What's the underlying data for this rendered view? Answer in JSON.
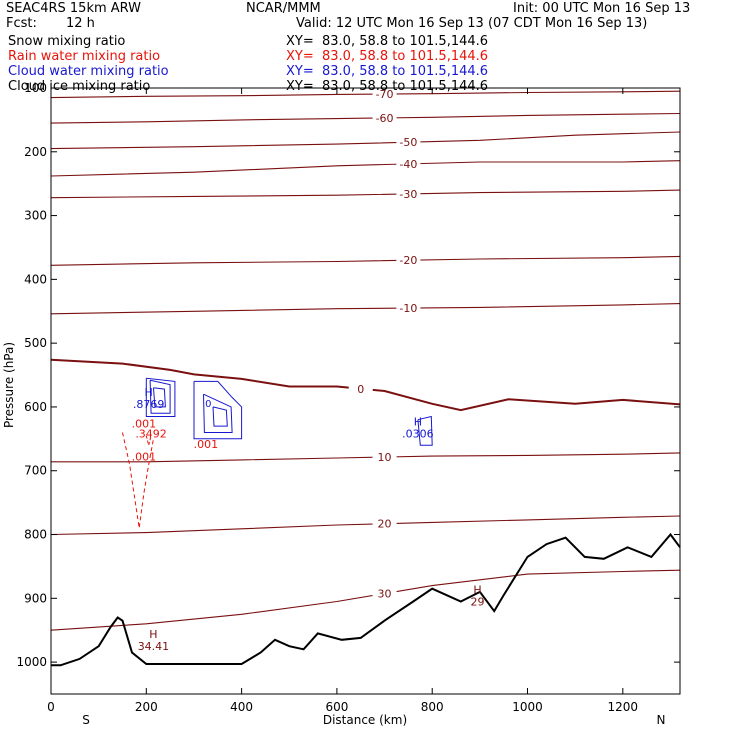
{
  "header": {
    "model": "SEAC4RS 15km ARW",
    "org": "NCAR/MMM",
    "init": "Init: 00 UTC Mon 16 Sep 13",
    "fcst_label": "Fcst:",
    "fcst_value": "12 h",
    "valid": "Valid: 12 UTC Mon 16 Sep 13 (07 CDT Mon 16 Sep 13)"
  },
  "fields": [
    {
      "name": "Snow mixing ratio",
      "xy": "XY=  83.0, 58.8 to 101.5,144.6",
      "color": "#000000"
    },
    {
      "name": "Rain water mixing ratio",
      "xy": "XY=  83.0, 58.8 to 101.5,144.6",
      "color": "#e8140a"
    },
    {
      "name": "Cloud water mixing ratio",
      "xy": "XY=  83.0, 58.8 to 101.5,144.6",
      "color": "#1818d0"
    },
    {
      "name": "Cloud ice mixing ratio",
      "xy": "XY=  83.0, 58.8 to 101.5,144.6",
      "color": "#000000"
    }
  ],
  "colors": {
    "temperature": "#7a1010",
    "rain": "#e8140a",
    "cloud": "#1818d0",
    "terrain": "#000000"
  },
  "chart_data": {
    "type": "cross-section contour",
    "xlabel": "Distance (km)",
    "ylabel": "Pressure (hPa)",
    "xlim": [
      0,
      1320
    ],
    "ylim": [
      1050,
      100
    ],
    "y_log_scale": false,
    "x_ticks": [
      0,
      200,
      400,
      600,
      800,
      1000,
      1200
    ],
    "y_ticks": [
      200,
      300,
      400,
      500,
      600,
      700,
      800,
      900,
      1000
    ],
    "y_tick_top_label": "100",
    "x_end_labels": {
      "left": "S",
      "right": "N"
    },
    "temperature_contours": [
      {
        "label": "-70",
        "values": [
          [
            0,
            115
          ],
          [
            200,
            113
          ],
          [
            400,
            112
          ],
          [
            600,
            110
          ],
          [
            800,
            109
          ],
          [
            1000,
            107
          ],
          [
            1200,
            106
          ],
          [
            1320,
            105
          ]
        ]
      },
      {
        "label": "-60",
        "values": [
          [
            0,
            155
          ],
          [
            200,
            153
          ],
          [
            400,
            150
          ],
          [
            600,
            148
          ],
          [
            800,
            146
          ],
          [
            1000,
            143
          ],
          [
            1200,
            141
          ],
          [
            1320,
            140
          ]
        ]
      },
      {
        "label": "-50",
        "values": [
          [
            0,
            195
          ],
          [
            300,
            192
          ],
          [
            600,
            188
          ],
          [
            900,
            182
          ],
          [
            1100,
            174
          ],
          [
            1320,
            169
          ]
        ]
      },
      {
        "label": "-40",
        "values": [
          [
            0,
            238
          ],
          [
            300,
            232
          ],
          [
            600,
            222
          ],
          [
            900,
            216
          ],
          [
            1200,
            216
          ],
          [
            1320,
            214
          ]
        ]
      },
      {
        "label": "-30",
        "values": [
          [
            0,
            272
          ],
          [
            300,
            270
          ],
          [
            600,
            268
          ],
          [
            900,
            264
          ],
          [
            1200,
            262
          ],
          [
            1320,
            260
          ]
        ]
      },
      {
        "label": "-20",
        "values": [
          [
            0,
            378
          ],
          [
            300,
            374
          ],
          [
            600,
            372
          ],
          [
            900,
            368
          ],
          [
            1200,
            366
          ],
          [
            1320,
            364
          ]
        ]
      },
      {
        "label": "-10",
        "values": [
          [
            0,
            454
          ],
          [
            300,
            450
          ],
          [
            600,
            446
          ],
          [
            900,
            444
          ],
          [
            1200,
            440
          ],
          [
            1320,
            438
          ]
        ]
      },
      {
        "label": "0",
        "values": [
          [
            0,
            526
          ],
          [
            150,
            532
          ],
          [
            250,
            542
          ],
          [
            300,
            549
          ],
          [
            400,
            556
          ],
          [
            500,
            568
          ],
          [
            600,
            568
          ],
          [
            700,
            575
          ],
          [
            800,
            595
          ],
          [
            860,
            605
          ],
          [
            960,
            588
          ],
          [
            1100,
            595
          ],
          [
            1200,
            589
          ],
          [
            1320,
            596
          ]
        ]
      },
      {
        "label": "10",
        "values": [
          [
            0,
            686
          ],
          [
            200,
            686
          ],
          [
            400,
            683
          ],
          [
            600,
            680
          ],
          [
            800,
            677
          ],
          [
            1000,
            676
          ],
          [
            1200,
            674
          ],
          [
            1320,
            672
          ]
        ]
      },
      {
        "label": "20",
        "values": [
          [
            0,
            800
          ],
          [
            200,
            797
          ],
          [
            400,
            791
          ],
          [
            600,
            785
          ],
          [
            800,
            781
          ],
          [
            1000,
            777
          ],
          [
            1200,
            773
          ],
          [
            1320,
            771
          ]
        ]
      },
      {
        "label": "30",
        "values": [
          [
            0,
            950
          ],
          [
            200,
            940
          ],
          [
            400,
            925
          ],
          [
            600,
            905
          ],
          [
            800,
            880
          ],
          [
            1000,
            862
          ],
          [
            1200,
            858
          ],
          [
            1320,
            856
          ]
        ]
      }
    ],
    "rain_contour_labels": [
      ".001",
      ".001",
      ".001"
    ],
    "rain_max_label": ".3492",
    "cloud_water_max_labels": [
      ".8769",
      ".0306"
    ],
    "cloud_water_contour_labels": [
      "0"
    ],
    "max_labels": [
      {
        "mark": "H",
        "value": ".8769",
        "at": [
          205,
          595
        ]
      },
      {
        "mark": "H",
        "value": ".0306",
        "at": [
          770,
          642
        ]
      },
      {
        "mark": "H",
        "value": "34.41",
        "at": [
          215,
          975
        ]
      },
      {
        "mark": "H",
        "value": "29",
        "at": [
          895,
          905
        ]
      }
    ],
    "terrain": {
      "distance_km": [
        0,
        20,
        60,
        100,
        125,
        140,
        150,
        170,
        200,
        240,
        300,
        350,
        400,
        440,
        470,
        500,
        530,
        560,
        610,
        650,
        700,
        760,
        800,
        860,
        900,
        930,
        950,
        1000,
        1040,
        1080,
        1120,
        1160,
        1210,
        1260,
        1300,
        1320
      ],
      "pressure_hpa": [
        1005,
        1005,
        995,
        975,
        945,
        930,
        935,
        985,
        1003,
        1003,
        1003,
        1003,
        1003,
        985,
        965,
        975,
        980,
        955,
        965,
        962,
        935,
        905,
        885,
        905,
        890,
        920,
        895,
        835,
        815,
        805,
        835,
        838,
        820,
        835,
        800,
        820
      ]
    }
  }
}
